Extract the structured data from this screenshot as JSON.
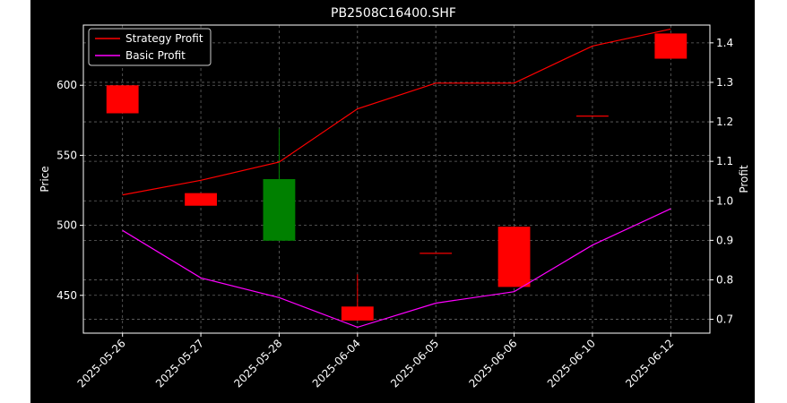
{
  "chart_data": {
    "type": "candlestick",
    "title": "PB2508C16400.SHF",
    "ylabel": "Price",
    "y2label": "Profit",
    "categories": [
      "2025-05-26",
      "2025-05-27",
      "2025-05-28",
      "2025-06-04",
      "2025-06-05",
      "2025-06-06",
      "2025-06-10",
      "2025-06-12"
    ],
    "candles": [
      {
        "open": 600,
        "close": 580,
        "high": 600,
        "low": 580
      },
      {
        "open": 523,
        "close": 514,
        "high": 523,
        "low": 514
      },
      {
        "open": 489,
        "close": 533,
        "high": 569,
        "low": 489
      },
      {
        "open": 442,
        "close": 432,
        "high": 465,
        "low": 432
      },
      {
        "open": 480,
        "close": 480,
        "high": 480,
        "low": 480
      },
      {
        "open": 499,
        "close": 456,
        "high": 499,
        "low": 456
      },
      {
        "open": 578,
        "close": 578,
        "high": 578,
        "low": 578
      },
      {
        "open": 637,
        "close": 619,
        "high": 637,
        "low": 619
      }
    ],
    "y_ticks": [
      450,
      500,
      550,
      600
    ],
    "y2_ticks": [
      0.7,
      0.8,
      0.9,
      1.0,
      1.1,
      1.2,
      1.3,
      1.4
    ],
    "ylim": [
      423,
      643
    ],
    "y2lim": [
      0.665,
      1.445
    ],
    "series": [
      {
        "name": "Strategy Profit",
        "color": "#ff0000",
        "values": [
          1.015,
          1.052,
          1.098,
          1.233,
          1.298,
          1.298,
          1.392,
          1.435
        ]
      },
      {
        "name": "Basic Profit",
        "color": "#ff00ff",
        "values": [
          0.925,
          0.805,
          0.755,
          0.68,
          0.741,
          0.77,
          0.888,
          0.98
        ]
      }
    ],
    "colors": {
      "up": "#008000",
      "down": "#ff0000",
      "background": "#000000",
      "grid": "#666666"
    },
    "grid": true,
    "legend_position": "top-left"
  }
}
